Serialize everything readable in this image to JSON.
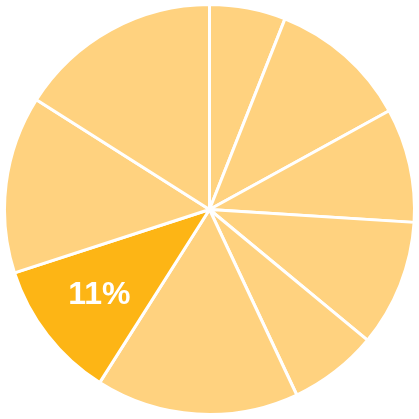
{
  "chart_data": {
    "type": "pie",
    "values": [
      6,
      11,
      9,
      10,
      7,
      16,
      11,
      14,
      16
    ],
    "value_labels": [
      null,
      null,
      null,
      null,
      null,
      null,
      "11%",
      null,
      null
    ],
    "colors": [
      "#FFD27F",
      "#FFD27F",
      "#FFD27F",
      "#FFD27F",
      "#FFD27F",
      "#FFD27F",
      "#FDB515",
      "#FFD27F",
      "#FFD27F"
    ]
  }
}
